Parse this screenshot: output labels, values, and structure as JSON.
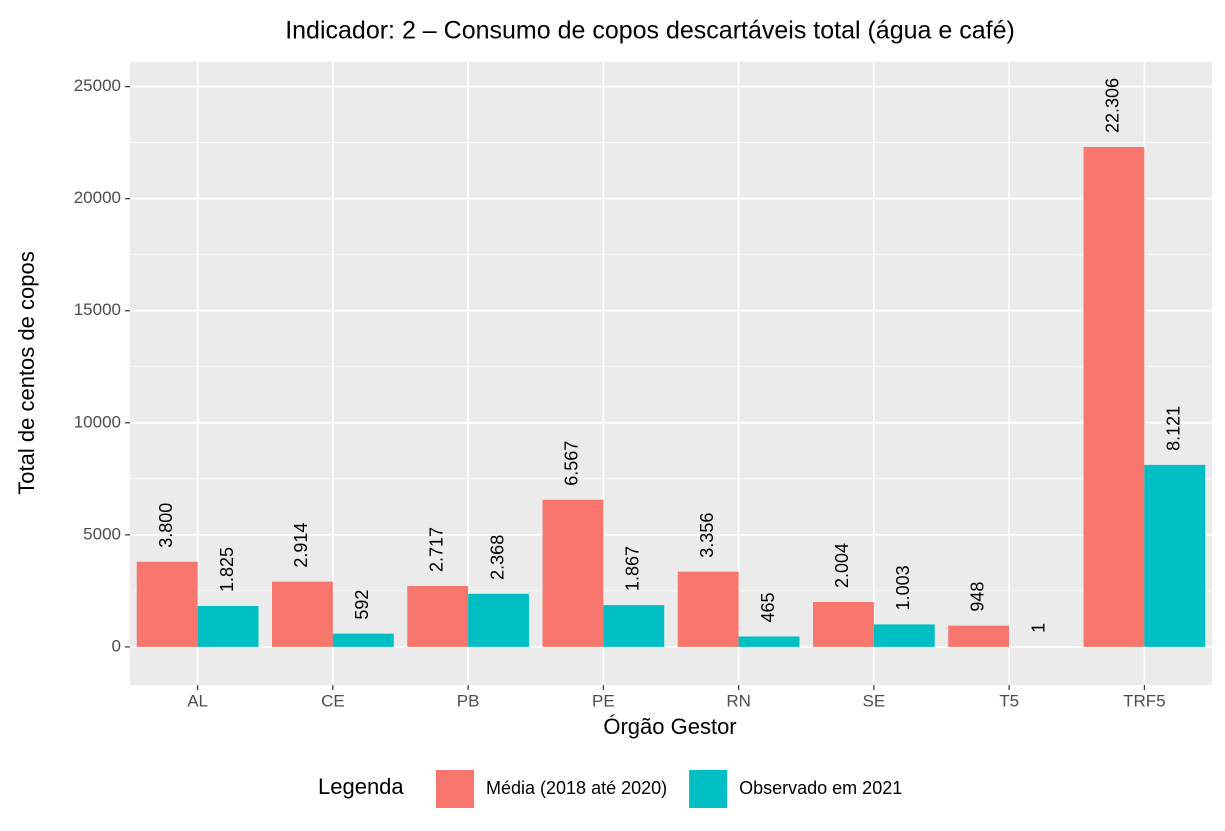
{
  "chart_data": {
    "type": "bar",
    "title": "Indicador: 2 – Consumo de copos descartáveis total (água e café)",
    "x_label": "Órgão Gestor",
    "y_label": "Total de centos de copos",
    "legend_title": "Legenda",
    "categories": [
      "AL",
      "CE",
      "PB",
      "PE",
      "RN",
      "SE",
      "T5",
      "TRF5"
    ],
    "series": [
      {
        "name": "Média (2018 até 2020)",
        "color": "#F8766D",
        "values": [
          3800,
          2914,
          2717,
          6567,
          3356,
          2004,
          948,
          22306
        ],
        "value_labels": [
          "3.800",
          "2.914",
          "2.717",
          "6.567",
          "3.356",
          "2.004",
          "948",
          "22.306"
        ]
      },
      {
        "name": "Observado em 2021",
        "color": "#00BFC4",
        "values": [
          1825,
          592,
          2368,
          1867,
          465,
          1003,
          1,
          8121
        ],
        "value_labels": [
          "1.825",
          "592",
          "2.368",
          "1.867",
          "465",
          "1.003",
          "1",
          "8.121"
        ]
      }
    ],
    "ylim": [
      -1700,
      26100
    ],
    "yticks": [
      0,
      5000,
      10000,
      15000,
      20000,
      25000
    ],
    "grid": true,
    "legend_position": "bottom"
  }
}
